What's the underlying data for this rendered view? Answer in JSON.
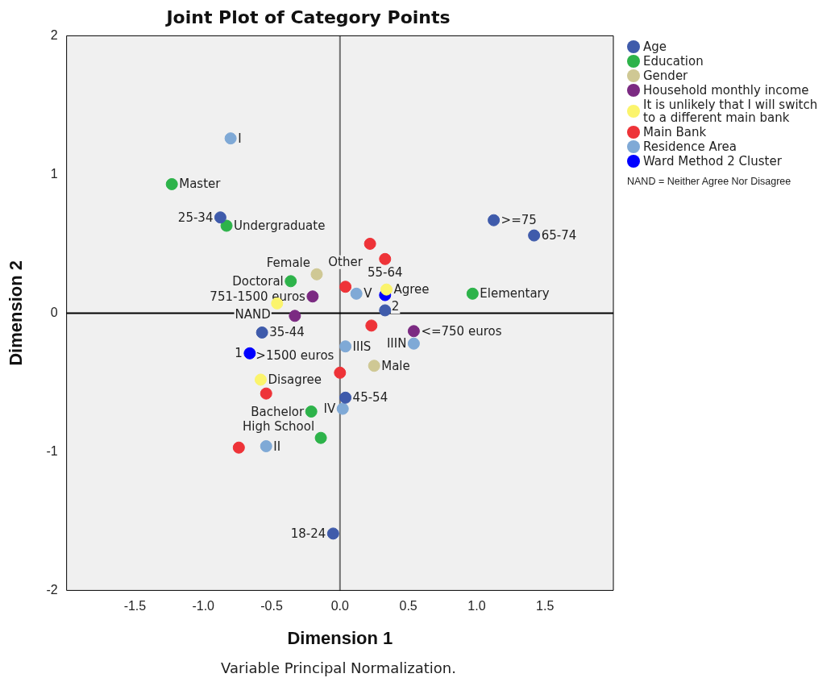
{
  "chart_data": {
    "type": "scatter",
    "title": "Joint Plot of Category Points",
    "xlabel": "Dimension 1",
    "ylabel": "Dimension 2",
    "xlim": [
      -2,
      2
    ],
    "ylim": [
      -2,
      2
    ],
    "xticks": [
      {
        "value": -1.5,
        "label": "-1.5"
      },
      {
        "value": -1,
        "label": "-1.0"
      },
      {
        "value": -0.5,
        "label": "-0.5"
      },
      {
        "value": 0,
        "label": "0.0"
      },
      {
        "value": 0.5,
        "label": "0.5"
      },
      {
        "value": 1,
        "label": "1.0"
      },
      {
        "value": 1.5,
        "label": "1.5"
      }
    ],
    "yticks": [
      -2,
      -1,
      0,
      1,
      2
    ],
    "grid": false,
    "legend": "right",
    "marker": "circle",
    "ref_lines": [
      {
        "axis": "x",
        "value": 0,
        "color": "#707070"
      },
      {
        "axis": "y",
        "value": 0,
        "color": "#000000"
      }
    ],
    "series": [
      {
        "name": "Age",
        "color": "#3f5bab",
        "x": [
          -0.875,
          1.125,
          1.42,
          0.33,
          -0.57,
          0.04,
          -0.05
        ],
        "values": [
          0.69,
          0.67,
          0.56,
          0.02,
          -0.14,
          -0.61,
          -1.59
        ]
      },
      {
        "name": "Education",
        "color": "#2db34a",
        "x": [
          -1.23,
          -0.83,
          -0.36,
          0.97,
          -0.21,
          -0.14
        ],
        "values": [
          0.93,
          0.63,
          0.23,
          0.14,
          -0.71,
          -0.9
        ]
      },
      {
        "name": "Gender",
        "color": "#cfc894",
        "x": [
          -0.17,
          0.25
        ],
        "values": [
          0.28,
          -0.38
        ]
      },
      {
        "name": "Household monthly income",
        "color": "#7b2a82",
        "x": [
          -0.2,
          -0.33,
          0.54
        ],
        "values": [
          0.12,
          -0.02,
          -0.13
        ]
      },
      {
        "name": "It is unlikely that I will switch to a different main bank",
        "color": "#fbf46c",
        "x": [
          -0.46,
          0.34,
          -0.58
        ],
        "values": [
          0.07,
          0.17,
          -0.48
        ]
      },
      {
        "name": "Main Bank",
        "color": "#ee3338",
        "x": [
          0.22,
          0.33,
          0.04,
          0.23,
          0,
          -0.54,
          -0.74
        ],
        "values": [
          0.5,
          0.39,
          0.19,
          -0.09,
          -0.43,
          -0.58,
          -0.97
        ]
      },
      {
        "name": "Residence Area",
        "color": "#7fa9d6",
        "x": [
          -0.8,
          0.12,
          0.04,
          0.54,
          0.02,
          -0.54
        ],
        "values": [
          1.26,
          0.14,
          -0.24,
          -0.22,
          -0.69,
          -0.96
        ]
      },
      {
        "name": "Ward Method 2 Cluster",
        "color": "#0000ff",
        "x": [
          -0.66,
          0.33
        ],
        "values": [
          -0.29,
          0.13
        ]
      }
    ],
    "annotations": [
      {
        "text": "25-34",
        "x": -0.875,
        "y": 0.69
      },
      {
        "text": ">=75",
        "x": 1.125,
        "y": 0.67
      },
      {
        "text": "65-74",
        "x": 1.42,
        "y": 0.56
      },
      {
        "text": "55-64",
        "x": 0.33,
        "y": 0.02
      },
      {
        "text": "35-44",
        "x": -0.57,
        "y": -0.14
      },
      {
        "text": "45-54",
        "x": 0.04,
        "y": -0.61
      },
      {
        "text": "18-24",
        "x": -0.05,
        "y": -1.59
      },
      {
        "text": "Master",
        "x": -1.23,
        "y": 0.93
      },
      {
        "text": "Undergraduate",
        "x": -0.83,
        "y": 0.63
      },
      {
        "text": "Doctoral",
        "x": -0.36,
        "y": 0.23
      },
      {
        "text": "Elementary",
        "x": 0.97,
        "y": 0.14
      },
      {
        "text": "Bachelor",
        "x": -0.21,
        "y": -0.71
      },
      {
        "text": "High School",
        "x": -0.14,
        "y": -0.9
      },
      {
        "text": "Female",
        "x": -0.17,
        "y": 0.28
      },
      {
        "text": "Male",
        "x": 0.25,
        "y": -0.38
      },
      {
        "text": "751-1500 euros",
        "x": -0.2,
        "y": 0.12
      },
      {
        "text": ">1500 euros",
        "x": -0.33,
        "y": -0.02
      },
      {
        "text": "<=750 euros",
        "x": 0.54,
        "y": -0.13
      },
      {
        "text": "NAND",
        "x": -0.46,
        "y": 0.07
      },
      {
        "text": "Agree",
        "x": 0.34,
        "y": 0.17
      },
      {
        "text": "Disagree",
        "x": -0.58,
        "y": -0.48
      },
      {
        "text": "Other",
        "x": 0.04,
        "y": 0.19
      },
      {
        "text": "I",
        "x": -0.8,
        "y": 1.26
      },
      {
        "text": "V",
        "x": 0.12,
        "y": 0.14
      },
      {
        "text": "IIIS",
        "x": 0.04,
        "y": -0.24
      },
      {
        "text": "IIIN",
        "x": 0.54,
        "y": -0.22
      },
      {
        "text": "IV",
        "x": 0.02,
        "y": -0.69
      },
      {
        "text": "II",
        "x": -0.54,
        "y": -0.96
      },
      {
        "text": "1",
        "x": -0.66,
        "y": -0.29
      },
      {
        "text": "2",
        "x": 0.33,
        "y": 0.13
      },
      "NAND = Neither Agree Nor Disagree",
      "Variable Principal Normalization."
    ]
  }
}
